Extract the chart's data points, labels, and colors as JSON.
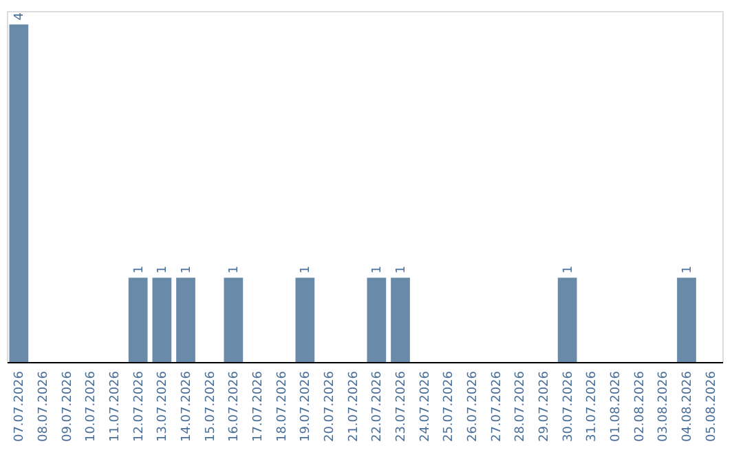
{
  "chart_data": {
    "type": "bar",
    "categories": [
      "07.07.2026",
      "08.07.2026",
      "09.07.2026",
      "10.07.2026",
      "11.07.2026",
      "12.07.2026",
      "13.07.2026",
      "14.07.2026",
      "15.07.2026",
      "16.07.2026",
      "17.07.2026",
      "18.07.2026",
      "19.07.2026",
      "20.07.2026",
      "21.07.2026",
      "22.07.2026",
      "23.07.2026",
      "24.07.2026",
      "25.07.2026",
      "26.07.2026",
      "27.07.2026",
      "28.07.2026",
      "29.07.2026",
      "30.07.2026",
      "31.07.2026",
      "01.08.2026",
      "02.08.2026",
      "03.08.2026",
      "04.08.2026",
      "05.08.2026"
    ],
    "values": [
      4,
      0,
      0,
      0,
      0,
      1,
      1,
      1,
      0,
      1,
      0,
      0,
      1,
      0,
      0,
      1,
      1,
      0,
      0,
      0,
      0,
      0,
      0,
      1,
      0,
      0,
      0,
      0,
      1,
      0
    ],
    "value_labels": [
      "4",
      null,
      null,
      null,
      null,
      "1",
      "1",
      "1",
      null,
      "1",
      null,
      null,
      "1",
      null,
      null,
      "1",
      "1",
      null,
      null,
      null,
      null,
      null,
      null,
      "1",
      null,
      null,
      null,
      null,
      "1",
      null
    ],
    "color": "#6a8aaa",
    "grid": false,
    "tick_labels": "x"
  }
}
